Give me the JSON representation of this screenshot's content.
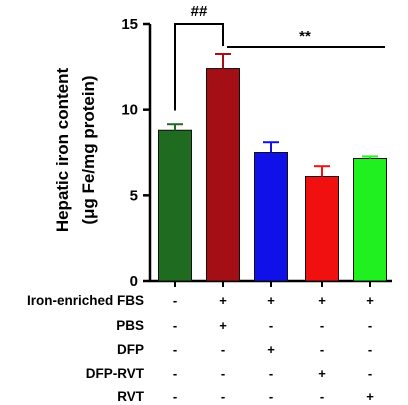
{
  "chart_data": {
    "type": "bar",
    "title": "",
    "ylabel_lines": [
      "Hepatic iron content",
      "(μg Fe/mg protein)"
    ],
    "ylim": [
      0,
      15
    ],
    "yticks": [
      0,
      5,
      10,
      15
    ],
    "grid": false,
    "bars": [
      {
        "value": 8.8,
        "error": 0.35,
        "color": "#1f6b1f"
      },
      {
        "value": 12.4,
        "error": 0.85,
        "color": "#a30f14"
      },
      {
        "value": 7.5,
        "error": 0.6,
        "color": "#1010e8"
      },
      {
        "value": 6.1,
        "error": 0.6,
        "color": "#f01010"
      },
      {
        "value": 7.15,
        "error": 0.12,
        "color": "#20f020"
      }
    ],
    "treatment_table": [
      {
        "label": "Iron-enriched FBS",
        "marks": [
          "-",
          "+",
          "+",
          "+",
          "+"
        ]
      },
      {
        "label": "PBS",
        "marks": [
          "-",
          "+",
          "-",
          "-",
          "-"
        ]
      },
      {
        "label": "DFP",
        "marks": [
          "-",
          "-",
          "+",
          "-",
          "-"
        ]
      },
      {
        "label": "DFP-RVT",
        "marks": [
          "-",
          "-",
          "-",
          "+",
          "-"
        ]
      },
      {
        "label": "RVT",
        "marks": [
          "-",
          "-",
          "-",
          "-",
          "+"
        ]
      }
    ],
    "annotations": [
      {
        "text": "##",
        "from_bar": 0,
        "to_bar": 1,
        "style": "bracket"
      },
      {
        "text": "**",
        "from_bar": 1,
        "to_bar": 4,
        "style": "line"
      }
    ]
  }
}
